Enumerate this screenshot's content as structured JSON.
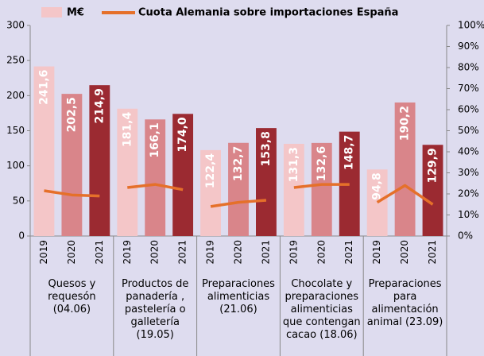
{
  "chart_data": {
    "type": "bar",
    "categories": [
      "2019",
      "2020",
      "2021",
      "2019",
      "2020",
      "2021",
      "2019",
      "2020",
      "2021",
      "2019",
      "2020",
      "2021",
      "2019",
      "2020",
      "2021"
    ],
    "groups": [
      "Quesos y\nrequesón\n(04.06)",
      "Productos de\npanadería ,\npastelería o\ngalletería\n(19.05)",
      "Preparaciones\nalimenticias\n(21.06)",
      "Chocolate y\npreparaciones\nalimenticias\nque contengan\ncacao  (18.06)",
      "Preparaciones\npara\nalimentación\nanimal  (23.09)"
    ],
    "series": [
      {
        "name": "M€",
        "type": "bar",
        "color": "#f4c6c8",
        "colors": [
          "#f4c6c8",
          "#d9858a",
          "#9b2a31"
        ],
        "values": [
          241.6,
          202.5,
          214.9,
          181.4,
          166.1,
          174.0,
          122.4,
          132.7,
          153.8,
          131.3,
          132.6,
          148.7,
          94.8,
          190.2,
          129.9
        ],
        "value_labels": [
          "241,6",
          "202,5",
          "214,9",
          "181,4",
          "166,1",
          "174,0",
          "122,4",
          "132,7",
          "153,8",
          "131,3",
          "132,6",
          "148,7",
          "94,8",
          "190,2",
          "129,9"
        ]
      },
      {
        "name": "Cuota Alemania sobre importaciones España",
        "type": "line",
        "color": "#e5702a",
        "axis": "y2",
        "values": [
          21.5,
          19.5,
          19,
          23,
          24.5,
          22,
          14,
          16,
          17,
          23,
          24.5,
          24.5,
          16,
          24,
          15
        ]
      }
    ],
    "ylim": [
      0,
      300
    ],
    "yticks": [
      0,
      50,
      100,
      150,
      200,
      250,
      300
    ],
    "y2lim": [
      0,
      100
    ],
    "y2ticks": [
      {
        "value": 0,
        "label": "0%"
      },
      {
        "value": 10,
        "label": "10%"
      },
      {
        "value": 20,
        "label": "20%"
      },
      {
        "value": 30,
        "label": "30%"
      },
      {
        "value": 40,
        "label": "40%"
      },
      {
        "value": 50,
        "label": "50%"
      },
      {
        "value": 60,
        "label": "60%"
      },
      {
        "value": 70,
        "label": "70%"
      },
      {
        "value": 80,
        "label": "80%"
      },
      {
        "value": 90,
        "label": "90%"
      },
      {
        "value": 100,
        "label": "100%"
      }
    ]
  }
}
